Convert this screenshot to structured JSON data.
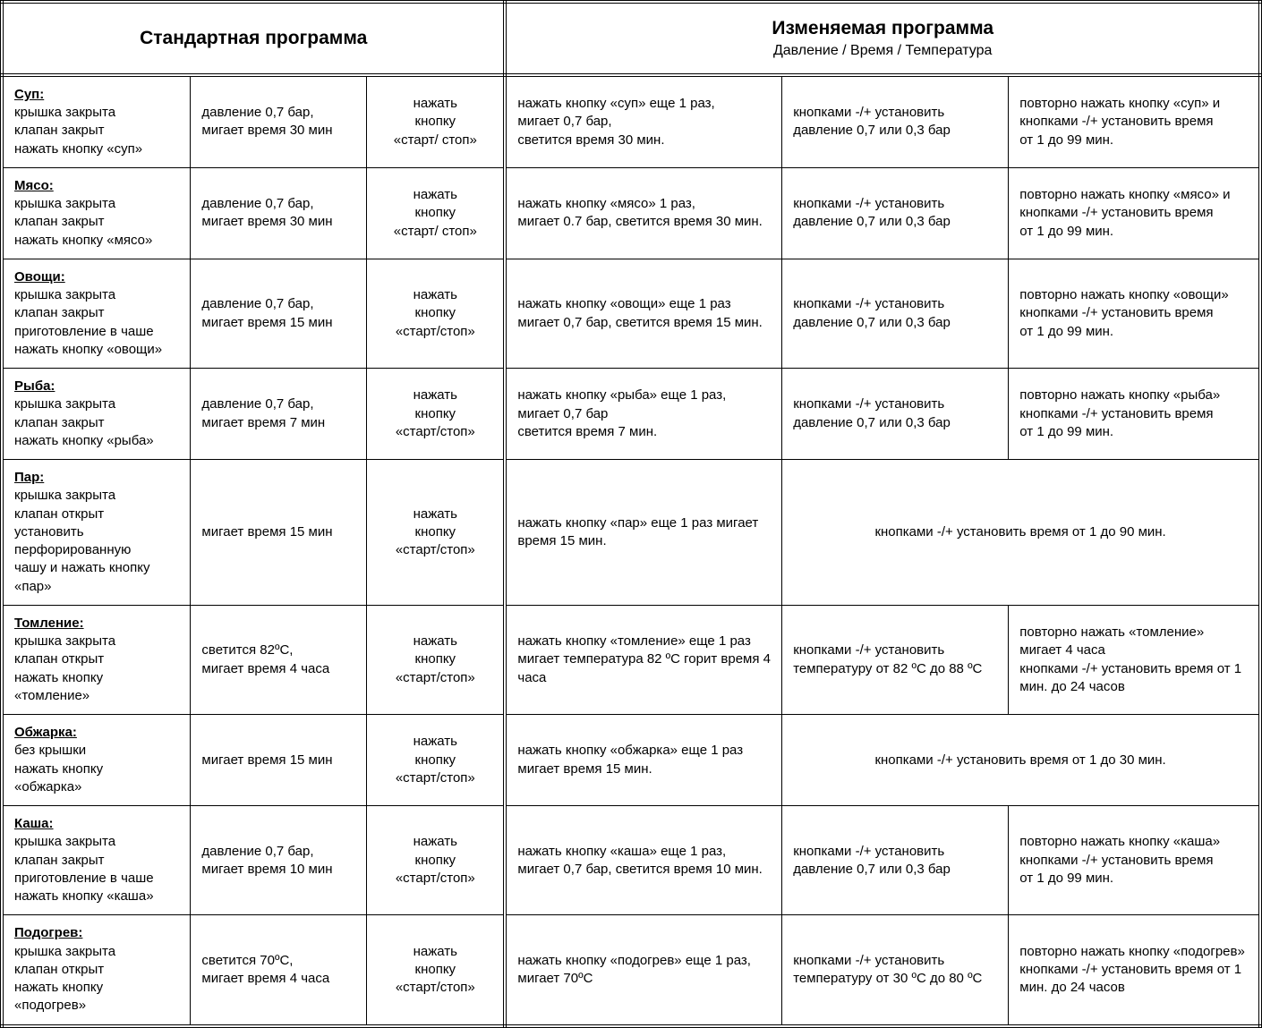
{
  "headers": {
    "left": "Стандартная программа",
    "right_title": "Изменяемая программа",
    "right_sub": "Давление / Время / Температура"
  },
  "rows": [
    {
      "name": "Суп:",
      "desc": "крышка закрыта\nклапан закрыт\nнажать кнопку «суп»",
      "std_params": "давление 0,7 бар,\nмигает время 30 мин",
      "std_action": "нажать\nкнопку\n«старт/ стоп»",
      "chg1": "нажать кнопку «суп» еще 1 раз,\nмигает 0,7 бар,\nсветится  время 30 мин.",
      "chg2": "кнопками  -/+  установить давление  0,7 или 0,3 бар",
      "chg3": "повторно нажать кнопку «суп» и кнопками -/+ установить время\nот 1 до 99 мин.",
      "span": false
    },
    {
      "name": "Мясо:",
      "desc": "крышка закрыта\nклапан закрыт\nнажать кнопку «мясо»",
      "std_params": "давление 0,7  бар,\nмигает время 30 мин",
      "std_action": "нажать\nкнопку\n«старт/ стоп»",
      "chg1": "нажать кнопку «мясо» 1 раз,\nмигает  0.7 бар, светится  время 30 мин.",
      "chg2": "кнопками  -/+ установить давление  0,7 или  0,3 бар",
      "chg3": "повторно нажать кнопку «мясо» и кнопками -/+ установить время\nот 1 до 99 мин.",
      "span": false
    },
    {
      "name": "Овощи:",
      "desc": "крышка закрыта\nклапан закрыт\nприготовление в чаше\nнажать кнопку «овощи»",
      "std_params": "давление 0,7 бар,\nмигает время 15 мин",
      "std_action": "нажать\nкнопку\n«старт/стоп»",
      "chg1": "нажать кнопку «овощи» еще 1 раз мигает  0,7 бар, светится  время 15  мин.",
      "chg2": "кнопками  -/+ установить давление  0,7 или  0,3 бар",
      "chg3": "повторно нажать кнопку «овощи» кнопками -/+ установить время\nот 1 до 99 мин.",
      "span": false
    },
    {
      "name": "Рыба:",
      "desc": "крышка закрыта\nклапан закрыт\nнажать кнопку «рыба»",
      "std_params": "давление 0,7 бар,\nмигает время 7 мин",
      "std_action": "нажать\nкнопку\n«старт/стоп»",
      "chg1": "нажать кнопку «рыба» еще 1 раз,\nмигает  0,7 бар\nсветится время 7 мин.",
      "chg2": "кнопками -/+ установить давление  0,7 или  0,3 бар",
      "chg3": "повторно нажать кнопку «рыба» кнопками -/+ установить время\nот 1 до 99 мин.",
      "span": false
    },
    {
      "name": "Пар:",
      "desc": "крышка закрыта\nклапан открыт\nустановить\nперфорированную\nчашу и нажать кнопку\n«пар»",
      "std_params": "мигает время 15 мин",
      "std_action": "нажать\nкнопку\n«старт/стоп»",
      "chg1": "нажать кнопку «пар» еще 1 раз мигает время 15 мин.",
      "chg2": "кнопками -/+ установить  время  от 1 до 90 мин.",
      "chg3": "",
      "span": true
    },
    {
      "name": "Томление:",
      "desc": "крышка закрыта\nклапан открыт\nнажать кнопку\n«томление»",
      "std_params": "светится 82ºС,\nмигает время 4 часа",
      "std_action": "нажать\nкнопку\n«старт/стоп»",
      "chg1": "нажать кнопку «томление» еще 1 раз мигает температура 82 ºС горит время 4 часа",
      "chg2": "кнопками -/+ установить температуру от 82 ºС до 88 ºС",
      "chg3": "повторно нажать «томление» мигает 4 часа\nкнопками -/+  установить время от 1 мин.  до 24 часов",
      "span": false
    },
    {
      "name": "Обжарка:",
      "desc": "без крышки\nнажать кнопку\n«обжарка»",
      "std_params": "мигает время 15 мин",
      "std_action": "нажать\nкнопку\n«старт/стоп»",
      "chg1": "нажать кнопку «обжарка» еще 1 раз мигает время 15 мин.",
      "chg2": "кнопками  -/+  установить время  от 1 до 30 мин.",
      "chg3": "",
      "span": true
    },
    {
      "name": "Каша:",
      "desc": "крышка закрыта\nклапан закрыт\nприготовление в чаше\nнажать кнопку «каша»",
      "std_params": "давление 0,7 бар,\nмигает время 10 мин",
      "std_action": "нажать\nкнопку\n«старт/стоп»",
      "chg1": "нажать кнопку «каша» еще 1 раз,\nмигает  0,7 бар, светится время 10  мин.",
      "chg2": "кнопками -/+ установить давление  0,7 или  0,3 бар",
      "chg3": "повторно нажать кнопку «каша» кнопками -/+ установить время\nот 1 до 99 мин.",
      "span": false
    },
    {
      "name": "Подогрев:",
      "desc": "крышка закрыта\nклапан открыт\nнажать кнопку\n«подогрев»",
      "std_params": "светится 70ºС,\nмигает время 4 часа",
      "std_action": "нажать\nкнопку\n«старт/стоп»",
      "chg1": "нажать кнопку «подогрев» еще 1 раз, мигает 70ºС",
      "chg2": "кнопками -/+ установить температуру от 30 ºС до 80 ºС",
      "chg3": "повторно нажать кнопку «подогрев» кнопками -/+ установить время от 1 мин. до 24 часов",
      "span": false
    }
  ]
}
